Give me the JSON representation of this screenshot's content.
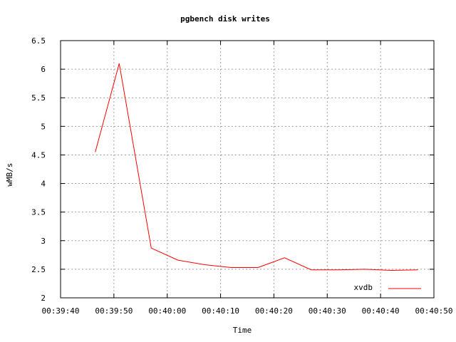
{
  "chart_data": {
    "type": "line",
    "title": "pgbench disk writes",
    "xlabel": "Time",
    "ylabel": "wMB/s",
    "x_ticks": [
      "00:39:40",
      "00:39:50",
      "00:40:00",
      "00:40:10",
      "00:40:20",
      "00:40:30",
      "00:40:40",
      "00:40:50"
    ],
    "x_tick_seconds": [
      0,
      10,
      20,
      30,
      40,
      50,
      60,
      70
    ],
    "xlim": [
      0,
      70
    ],
    "y_ticks": [
      "2",
      "2.5",
      "3",
      "3.5",
      "4",
      "4.5",
      "5",
      "5.5",
      "6",
      "6.5"
    ],
    "y_tick_values": [
      2,
      2.5,
      3,
      3.5,
      4,
      4.5,
      5,
      5.5,
      6,
      6.5
    ],
    "ylim": [
      2,
      6.5
    ],
    "grid": true,
    "legend_position": "bottom-right",
    "series": [
      {
        "name": "xvdb",
        "color": "#ff0000",
        "x": [
          "00:39:46.5",
          "00:39:51",
          "00:39:57",
          "00:40:02",
          "00:40:07",
          "00:40:12",
          "00:40:17",
          "00:40:22",
          "00:40:27",
          "00:40:32",
          "00:40:37",
          "00:40:42",
          "00:40:47"
        ],
        "x_seconds": [
          6.5,
          11,
          17,
          22,
          27,
          32,
          37,
          42,
          47,
          52,
          57,
          62,
          67
        ],
        "values": [
          4.55,
          6.1,
          2.87,
          2.66,
          2.58,
          2.53,
          2.53,
          2.7,
          2.49,
          2.49,
          2.5,
          2.48,
          2.49
        ]
      }
    ]
  }
}
